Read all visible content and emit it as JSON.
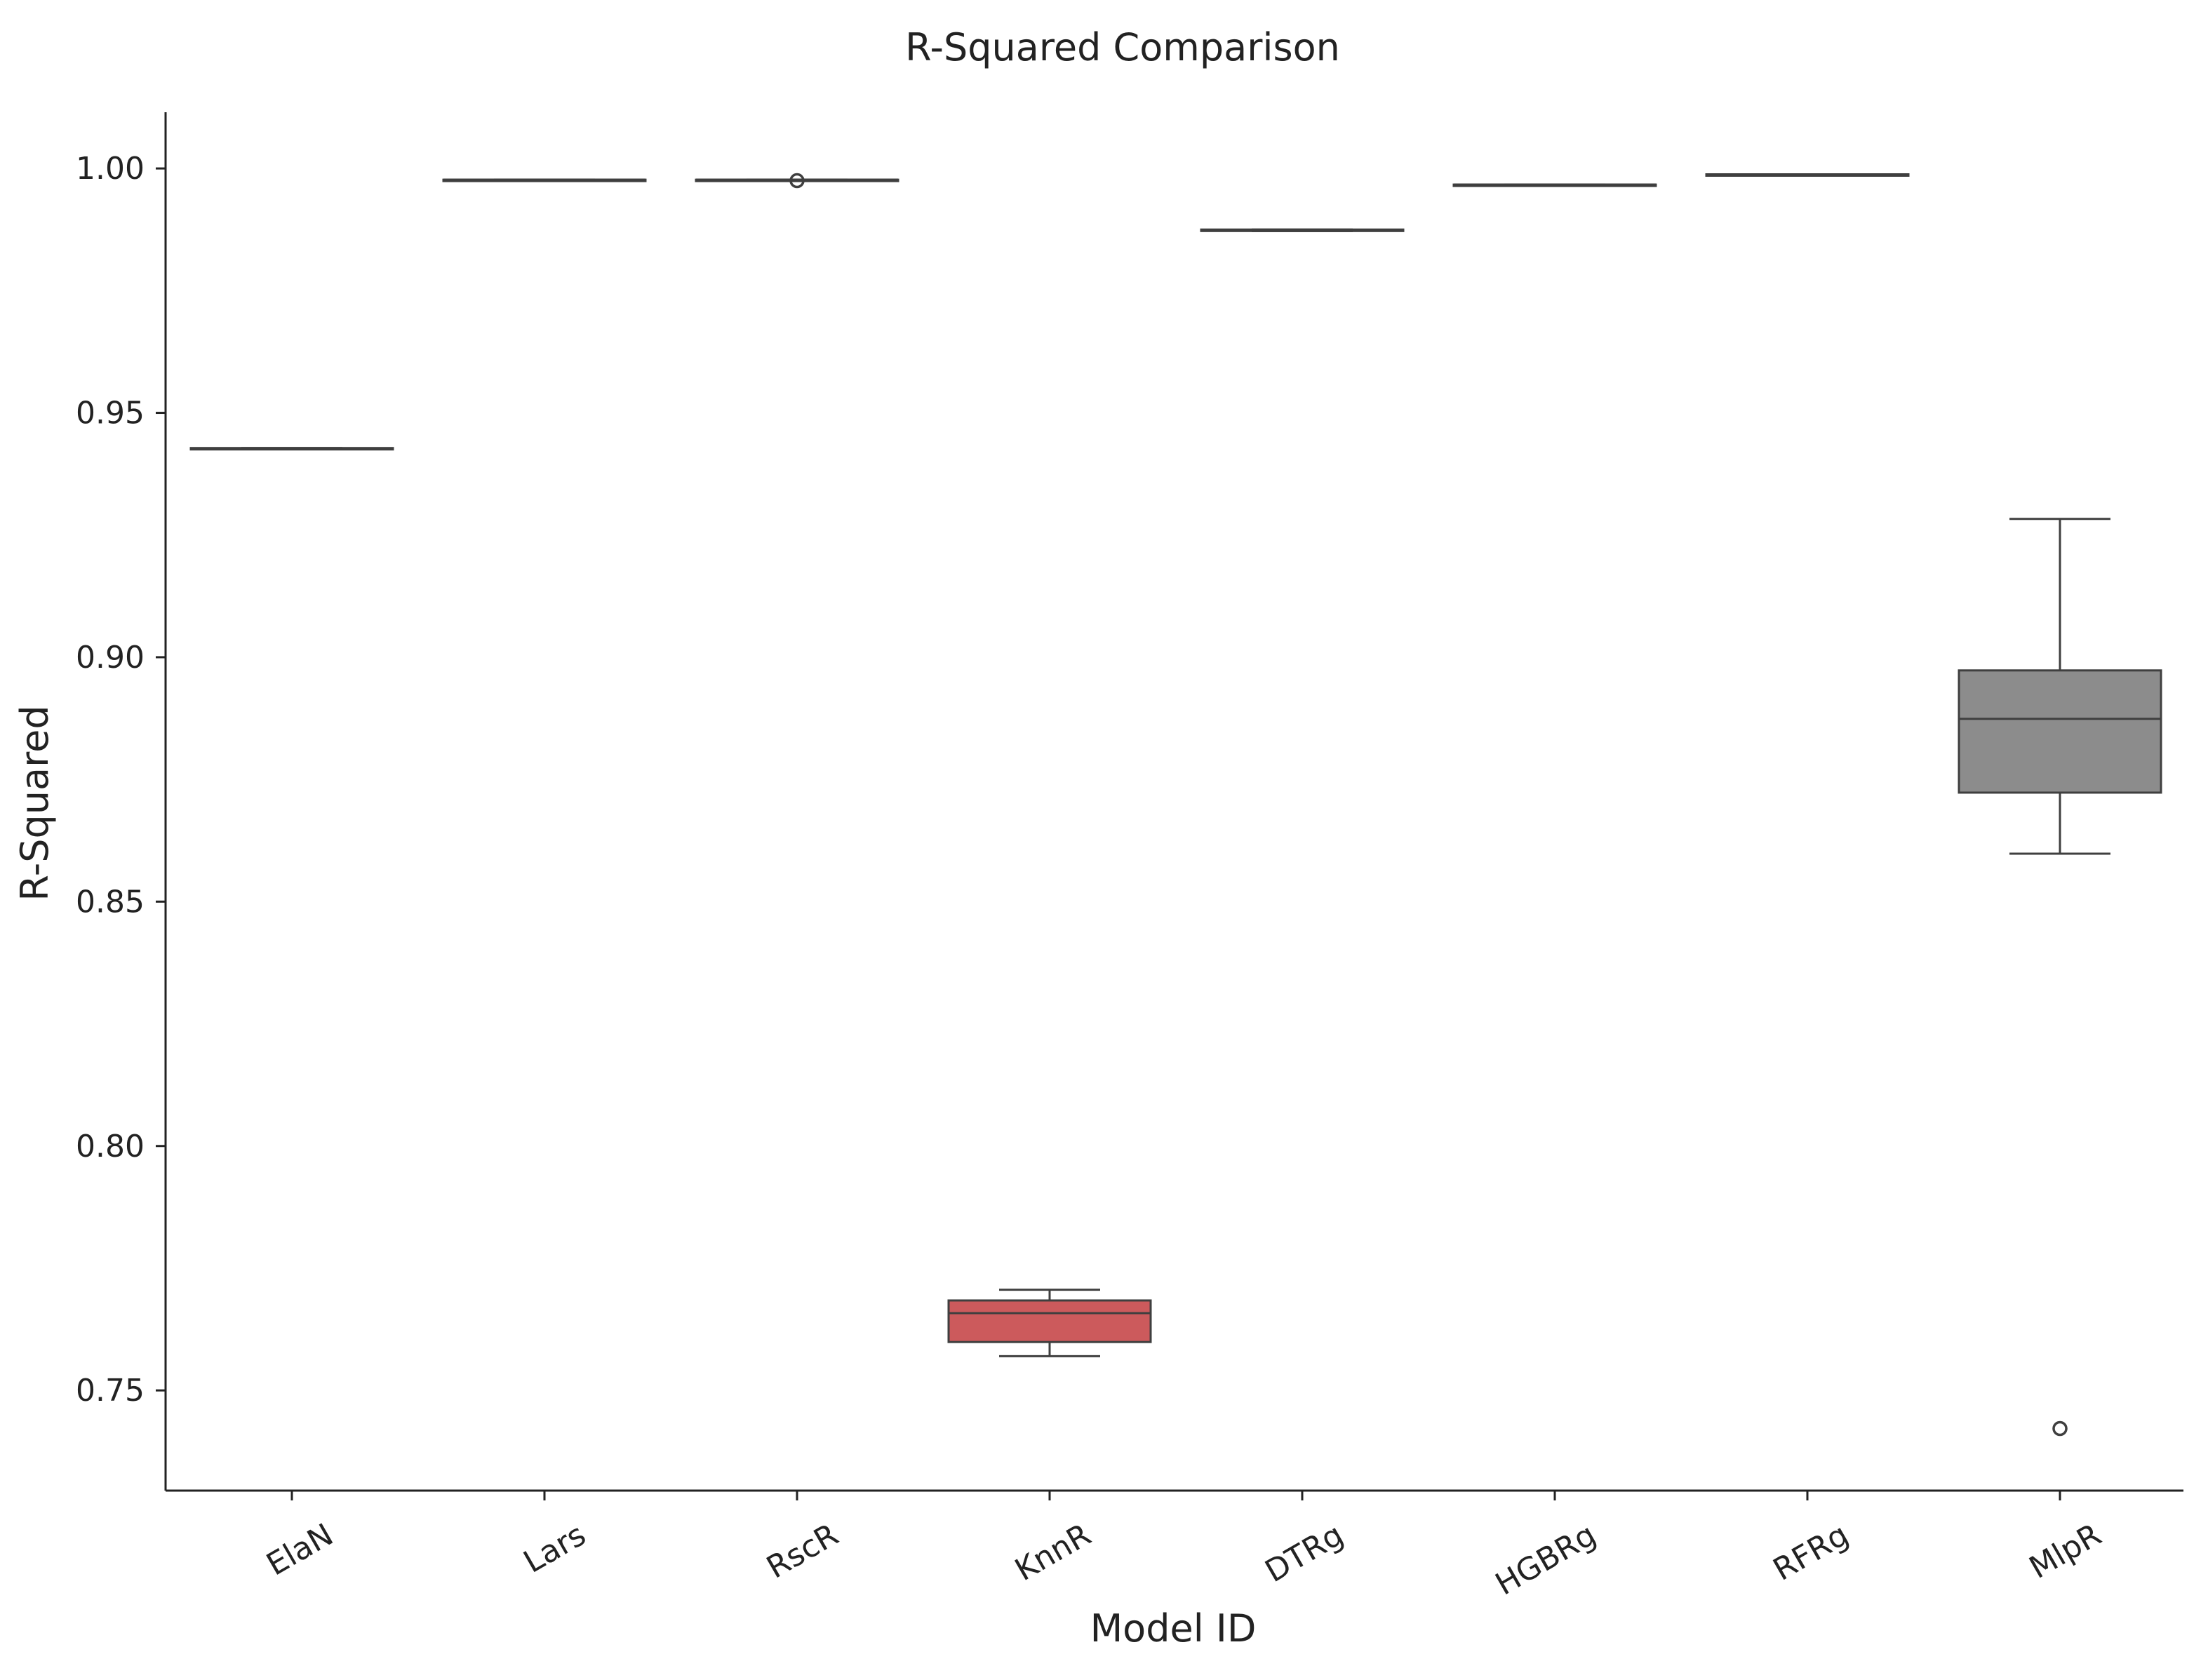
{
  "chart_data": {
    "type": "box",
    "title": "R-Squared Comparison",
    "xlabel": "Model ID",
    "ylabel": "R-Squared",
    "ylim": [
      0.7295,
      1.0115
    ],
    "yticks": [
      0.75,
      0.8,
      0.85,
      0.9,
      0.95,
      1.0
    ],
    "ytick_labels": [
      "0.75",
      "0.80",
      "0.85",
      "0.90",
      "0.95",
      "1.00"
    ],
    "grid": false,
    "categories": [
      "ElaN",
      "Lars",
      "RscR",
      "KnnR",
      "DTRg",
      "HGBRg",
      "RFRg",
      "MlpR"
    ],
    "boxes": [
      {
        "category": "ElaN",
        "whisker_low": 0.9427,
        "q1": 0.9427,
        "median": 0.9427,
        "q3": 0.9428,
        "whisker_high": 0.9428,
        "outliers": [],
        "color": "#4a73b6"
      },
      {
        "category": "Lars",
        "whisker_low": 0.9976,
        "q1": 0.9976,
        "median": 0.9977,
        "q3": 0.9977,
        "whisker_high": 0.9977,
        "outliers": [],
        "color": "#e08a2c"
      },
      {
        "category": "RscR",
        "whisker_low": 0.9976,
        "q1": 0.9977,
        "median": 0.9977,
        "q3": 0.9977,
        "whisker_high": 0.9977,
        "outliers": [
          0.9975
        ],
        "color": "#3a9a48"
      },
      {
        "category": "KnnR",
        "whisker_low": 0.757,
        "q1": 0.7599,
        "median": 0.7658,
        "q3": 0.7684,
        "whisker_high": 0.7706,
        "outliers": [],
        "color": "#cc5a5c"
      },
      {
        "category": "DTRg",
        "whisker_low": 0.9872,
        "q1": 0.9872,
        "median": 0.9873,
        "q3": 0.9875,
        "whisker_high": 0.9875,
        "outliers": [],
        "color": "#8b6bb3"
      },
      {
        "category": "HGBRg",
        "whisker_low": 0.9966,
        "q1": 0.9966,
        "median": 0.9967,
        "q3": 0.9967,
        "whisker_high": 0.9967,
        "outliers": [],
        "color": "#8b5a4a"
      },
      {
        "category": "RFRg",
        "whisker_low": 0.9987,
        "q1": 0.9987,
        "median": 0.9988,
        "q3": 0.9988,
        "whisker_high": 0.9988,
        "outliers": [],
        "color": "#d883bf"
      },
      {
        "category": "MlpR",
        "whisker_low": 0.8598,
        "q1": 0.8723,
        "median": 0.8874,
        "q3": 0.8973,
        "whisker_high": 0.9283,
        "outliers": [
          0.7422
        ],
        "color": "#8c8c8c"
      }
    ]
  }
}
